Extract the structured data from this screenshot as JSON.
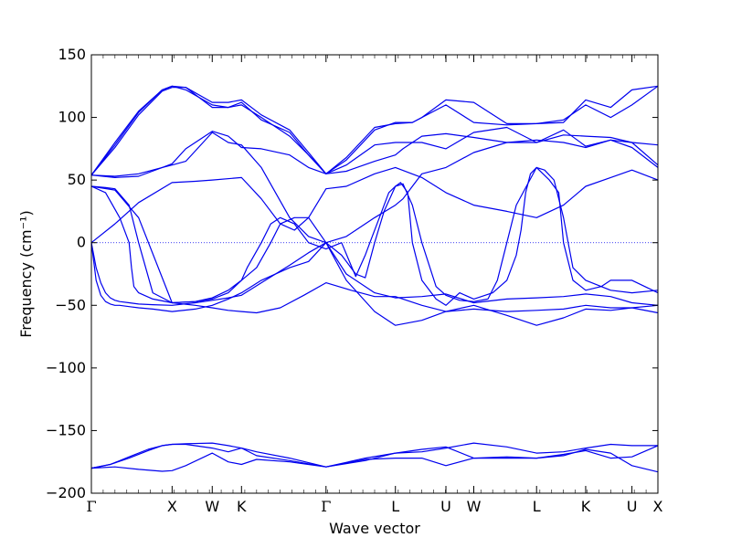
{
  "chart_data": {
    "type": "line",
    "xlabel": "Wave vector",
    "ylabel": "Frequency (cm⁻¹)",
    "ylim": [
      -200,
      150
    ],
    "yticks": [
      -200,
      -150,
      -100,
      -50,
      0,
      50,
      100,
      150
    ],
    "ytick_labels": [
      "−200",
      "−150",
      "−100",
      "−50",
      "0",
      "50",
      "100",
      "150"
    ],
    "xlim": [
      0,
      12
    ],
    "kpoints": [
      {
        "label": "Γ",
        "x": 0
      },
      {
        "label": "X",
        "x": 1.71
      },
      {
        "label": "W",
        "x": 2.56
      },
      {
        "label": "K",
        "x": 3.18
      },
      {
        "label": "Γ",
        "x": 4.97
      },
      {
        "label": "L",
        "x": 6.44
      },
      {
        "label": "U",
        "x": 7.51
      },
      {
        "label": "W",
        "x": 8.1
      },
      {
        "label": "L",
        "x": 9.43
      },
      {
        "label": "K",
        "x": 10.47
      },
      {
        "label": "U",
        "x": 11.45
      },
      {
        "label": "X",
        "x": 12.0
      }
    ],
    "zero_line": true,
    "line_color": "#0000ee",
    "series": [
      {
        "x": [
          0,
          0.4,
          0.8,
          1.2,
          1.5,
          1.71,
          2.0,
          2.56,
          2.9,
          3.18,
          3.5,
          4.2,
          4.97,
          5.8,
          6.44,
          7.0,
          7.51,
          8.1,
          8.8,
          9.43,
          10.0,
          10.47,
          11.0,
          11.45,
          12.0
        ],
        "y": [
          -180,
          -177,
          -172,
          -166,
          -162,
          -161,
          -160.5,
          -160,
          -162,
          -164,
          -167,
          -172,
          -179,
          -174,
          -168,
          -167,
          -164,
          -160,
          -163,
          -168,
          -167,
          -164,
          -161,
          -162,
          -162
        ]
      },
      {
        "x": [
          0,
          0.4,
          0.8,
          1.2,
          1.5,
          1.71,
          2.0,
          2.56,
          2.9,
          3.18,
          3.5,
          4.2,
          4.97,
          5.8,
          6.44,
          7.0,
          7.51,
          8.1,
          8.8,
          9.43,
          10.0,
          10.47,
          11.0,
          11.45,
          12.0
        ],
        "y": [
          -180,
          -177,
          -171,
          -165,
          -162,
          -161,
          -161,
          -164,
          -167,
          -164,
          -170,
          -174,
          -179,
          -172,
          -168,
          -165,
          -163,
          -172,
          -172,
          -172,
          -170,
          -165,
          -168,
          -178,
          -183
        ]
      },
      {
        "x": [
          0,
          0.5,
          1.0,
          1.5,
          1.71,
          2.0,
          2.56,
          2.9,
          3.18,
          3.5,
          4.2,
          4.97,
          5.8,
          6.44,
          7.0,
          7.51,
          8.1,
          8.8,
          9.43,
          10.0,
          10.47,
          11.0,
          11.45,
          12.0
        ],
        "y": [
          -180,
          -179,
          -181,
          -182.5,
          -182,
          -178,
          -168,
          -175,
          -177,
          -173,
          -175,
          -179,
          -173,
          -172,
          -172,
          -178,
          -172,
          -171,
          -172,
          -169,
          -166,
          -172,
          -171,
          -162
        ]
      },
      {
        "x": [
          0,
          0.05,
          0.1,
          0.2,
          0.3,
          0.4,
          0.5,
          0.6,
          0.8,
          1.0,
          1.3,
          1.71,
          2.2,
          2.56,
          2.9,
          3.18,
          3.6,
          4.2,
          4.6,
          4.97,
          5.4,
          6.0,
          6.44,
          7.0,
          7.51,
          8.1,
          8.8,
          9.43,
          10.0,
          10.47,
          11.0,
          11.45,
          12.0
        ],
        "y": [
          0,
          -10,
          -20,
          -32,
          -40,
          -44,
          -46,
          -47,
          -48,
          -49,
          -49.5,
          -50,
          -48,
          -46,
          -44,
          -42,
          -32,
          -18,
          -8,
          0,
          -25,
          -40,
          -44,
          -43,
          -41,
          -48,
          -45,
          -44,
          -43,
          -41,
          -43,
          -48,
          -50
        ]
      },
      {
        "x": [
          0,
          0.05,
          0.1,
          0.2,
          0.3,
          0.4,
          0.5,
          0.6,
          0.8,
          1.0,
          1.3,
          1.71,
          2.2,
          2.56,
          2.9,
          3.18,
          3.6,
          4.2,
          4.6,
          4.97,
          5.4,
          6.0,
          6.44,
          7.0,
          7.51,
          8.1,
          8.8,
          9.43,
          10.0,
          10.47,
          11.0,
          11.45,
          12.0
        ],
        "y": [
          0,
          -15,
          -30,
          -42,
          -47,
          -49,
          -50,
          -50,
          -51,
          -52,
          -53,
          -55,
          -53,
          -50,
          -45,
          -40,
          -30,
          -20,
          -15,
          0,
          -30,
          -55,
          -66,
          -62,
          -55,
          -50,
          -58,
          -66,
          -60,
          -53,
          -54,
          -52,
          -56
        ]
      },
      {
        "x": [
          0,
          0.5,
          1.0,
          1.71,
          2.2,
          2.56,
          2.9,
          3.18,
          3.5,
          4.0,
          4.5,
          4.97,
          5.5,
          6.0,
          6.44,
          7.0,
          7.51,
          8.1,
          8.8,
          9.43,
          10.0,
          10.47,
          11.0,
          11.45,
          12.0
        ],
        "y": [
          45,
          42,
          20,
          -48,
          -50,
          -52,
          -54,
          -55,
          -56,
          -52,
          -42,
          -32,
          -38,
          -43,
          -43,
          -50,
          -55,
          -53,
          -55,
          -54,
          -53,
          -50,
          -52,
          -52,
          -50
        ]
      },
      {
        "x": [
          0,
          0.3,
          0.6,
          0.8,
          0.85,
          0.9,
          1.0,
          1.3,
          1.71,
          2.2,
          2.56,
          2.9,
          3.18,
          3.3,
          3.6,
          3.8,
          4.0,
          4.3,
          4.6,
          4.97,
          5.3,
          5.6,
          5.8,
          5.9,
          6.1,
          6.3,
          6.44,
          6.55,
          6.7,
          6.8,
          7.0,
          7.3,
          7.51,
          7.8,
          8.1,
          8.5,
          8.8,
          9.0,
          9.1,
          9.2,
          9.3,
          9.43,
          9.6,
          9.8,
          10.0,
          10.1,
          10.2,
          10.47,
          11.0,
          11.45,
          12.0
        ],
        "y": [
          45,
          40,
          20,
          0,
          -20,
          -35,
          -40,
          -45,
          -48,
          -47,
          -45,
          -40,
          -30,
          -20,
          0,
          15,
          20,
          15,
          0,
          -5,
          0,
          -27,
          -10,
          0,
          20,
          40,
          45,
          48,
          40,
          0,
          -30,
          -45,
          -50,
          -40,
          -45,
          -40,
          -30,
          -10,
          10,
          40,
          55,
          60,
          58,
          50,
          20,
          0,
          -20,
          -30,
          -38,
          -40,
          -38
        ]
      },
      {
        "x": [
          0,
          0.3,
          0.5,
          0.8,
          1.0,
          1.3,
          1.71,
          2.2,
          2.56,
          2.9,
          3.18,
          3.5,
          3.8,
          4.0,
          4.3,
          4.6,
          4.97,
          5.3,
          5.6,
          5.8,
          6.0,
          6.2,
          6.44,
          6.6,
          6.8,
          7.0,
          7.3,
          7.51,
          7.8,
          8.1,
          8.4,
          8.6,
          8.8,
          9.0,
          9.43,
          9.7,
          9.9,
          10.0,
          10.2,
          10.47,
          10.8,
          11.0,
          11.45,
          12.0
        ],
        "y": [
          45,
          44,
          43,
          30,
          0,
          -40,
          -48,
          -47,
          -44,
          -38,
          -30,
          -20,
          0,
          15,
          20,
          20,
          0,
          -10,
          -25,
          -28,
          0,
          25,
          45,
          47,
          30,
          0,
          -35,
          -42,
          -46,
          -47,
          -45,
          -30,
          0,
          30,
          60,
          50,
          40,
          0,
          -30,
          -38,
          -35,
          -30,
          -30,
          -40
        ]
      },
      {
        "x": [
          0,
          0.5,
          1.0,
          1.71,
          2.2,
          2.56,
          3.18,
          3.6,
          4.0,
          4.3,
          4.6,
          4.97,
          5.4,
          6.0,
          6.44,
          7.0,
          7.51,
          8.1,
          8.8,
          9.43,
          10.0,
          10.47,
          11.0,
          11.45,
          12.0
        ],
        "y": [
          0,
          15,
          32,
          48,
          49,
          50,
          52,
          35,
          15,
          10,
          20,
          43,
          45,
          55,
          60,
          52,
          40,
          30,
          25,
          20,
          30,
          45,
          52,
          58,
          50
        ]
      },
      {
        "x": [
          0,
          0.5,
          1.0,
          1.5,
          1.71,
          2.0,
          2.56,
          2.9,
          3.18,
          3.6,
          4.2,
          4.6,
          4.97,
          5.4,
          6.0,
          6.44,
          6.6,
          6.8,
          7.0,
          7.51,
          8.1,
          8.8,
          9.43,
          10.0,
          10.47,
          11.0,
          11.45,
          12.0
        ],
        "y": [
          54,
          53,
          55,
          60,
          62,
          65,
          88,
          80,
          78,
          60,
          20,
          5,
          0,
          5,
          20,
          30,
          35,
          45,
          55,
          60,
          72,
          80,
          82,
          80,
          76,
          82,
          80,
          62
        ]
      },
      {
        "x": [
          0,
          0.5,
          1.0,
          1.5,
          1.71,
          2.0,
          2.56,
          2.9,
          3.18,
          3.6,
          4.2,
          4.6,
          4.97,
          5.4,
          6.0,
          6.44,
          6.6,
          6.8,
          7.0,
          7.51,
          8.1,
          8.8,
          9.43,
          10.0,
          10.47,
          11.0,
          11.45,
          12.0
        ],
        "y": [
          54,
          52,
          53,
          60,
          63,
          75,
          89,
          85,
          76,
          75,
          70,
          60,
          55,
          57,
          65,
          70,
          75,
          80,
          80,
          75,
          88,
          92,
          80,
          90,
          77,
          82,
          76,
          60
        ]
      },
      {
        "x": [
          0,
          0.5,
          1.0,
          1.5,
          1.71,
          2.0,
          2.56,
          2.9,
          3.18,
          3.6,
          4.2,
          4.6,
          4.97,
          5.4,
          6.0,
          6.44,
          6.8,
          7.0,
          7.51,
          8.1,
          8.8,
          9.43,
          10.0,
          10.47,
          11.0,
          11.45,
          12.0
        ],
        "y": [
          54,
          80,
          105,
          122,
          125,
          122,
          110,
          108,
          110,
          100,
          85,
          70,
          55,
          62,
          78,
          80,
          80,
          85,
          87,
          84,
          80,
          80,
          86,
          85,
          84,
          80,
          78
        ]
      },
      {
        "x": [
          0,
          0.5,
          1.0,
          1.5,
          1.71,
          2.0,
          2.56,
          2.9,
          3.18,
          3.6,
          4.2,
          4.6,
          4.97,
          5.4,
          6.0,
          6.44,
          6.8,
          7.0,
          7.51,
          8.1,
          8.8,
          9.43,
          10.0,
          10.47,
          11.0,
          11.45,
          12.0
        ],
        "y": [
          54,
          78,
          104,
          122,
          125,
          124,
          112,
          112,
          114,
          102,
          90,
          72,
          55,
          66,
          90,
          96,
          96,
          100,
          114,
          112,
          95,
          95,
          96,
          114,
          108,
          122,
          125
        ]
      },
      {
        "x": [
          0,
          0.5,
          1.0,
          1.5,
          1.71,
          2.0,
          2.56,
          2.9,
          3.18,
          3.6,
          4.2,
          4.6,
          4.97,
          5.4,
          6.0,
          6.44,
          6.8,
          7.0,
          7.51,
          8.1,
          8.8,
          9.43,
          10.0,
          10.47,
          11.0,
          11.45,
          12.0
        ],
        "y": [
          54,
          76,
          102,
          121,
          124,
          124,
          108,
          108,
          112,
          98,
          88,
          70,
          55,
          68,
          92,
          95,
          96,
          100,
          110,
          96,
          94,
          95,
          98,
          110,
          100,
          110,
          125
        ]
      }
    ]
  }
}
